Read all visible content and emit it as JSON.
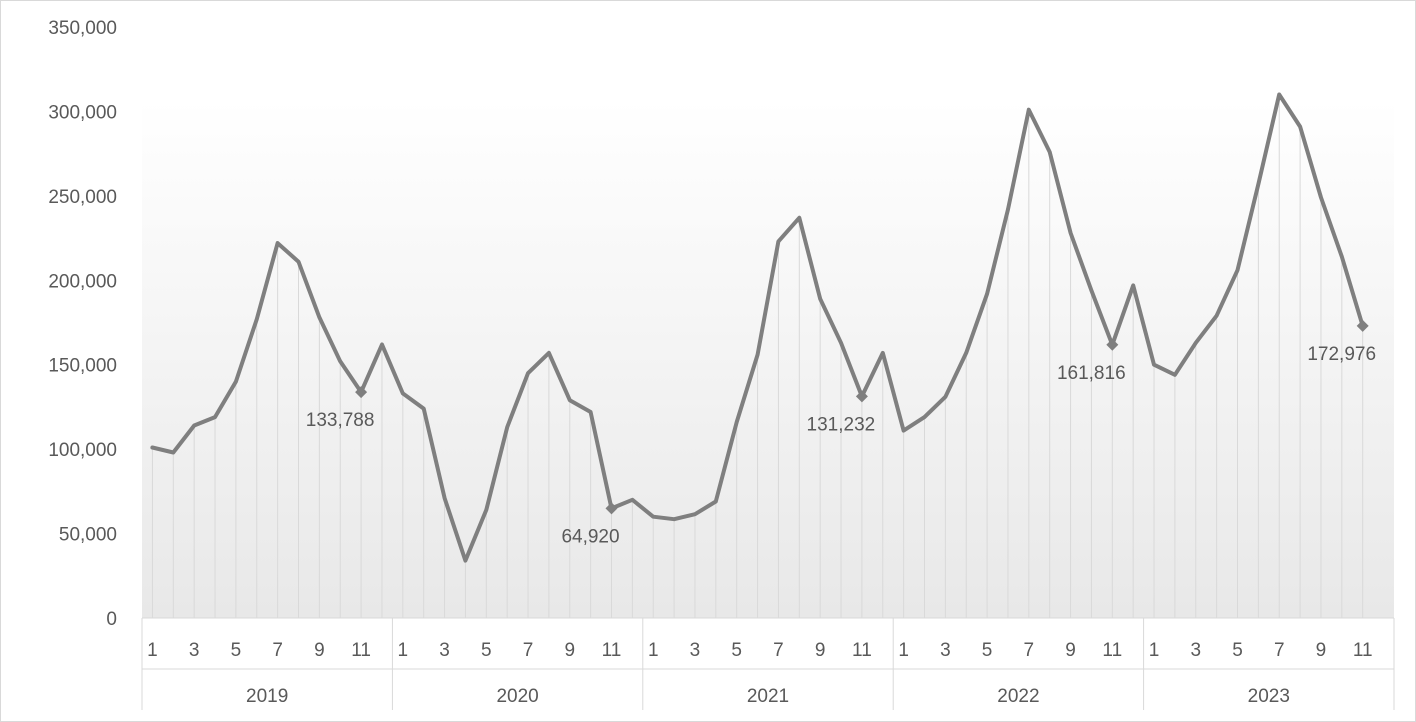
{
  "chart_data": {
    "type": "line",
    "title": "",
    "xlabel": "",
    "ylabel": "",
    "ylim": [
      0,
      350000
    ],
    "yticks": [
      0,
      50000,
      100000,
      150000,
      200000,
      250000,
      300000,
      350000
    ],
    "ytick_labels": [
      "0",
      "50,000",
      "100,000",
      "150,000",
      "200,000",
      "250,000",
      "300,000",
      "350,000"
    ],
    "years": [
      "2019",
      "2020",
      "2021",
      "2022",
      "2023"
    ],
    "month_tick_labels": [
      "1",
      "3",
      "5",
      "7",
      "9",
      "11"
    ],
    "grid": false,
    "drop_lines": true,
    "series": [
      {
        "values": [
          101000,
          98000,
          114000,
          119000,
          140000,
          177000,
          222000,
          211000,
          178000,
          152000,
          133788,
          162000,
          133000,
          124000,
          71000,
          34000,
          64000,
          113000,
          145000,
          157000,
          129000,
          122000,
          64920,
          70000,
          60000,
          58500,
          61500,
          69000,
          116000,
          156000,
          223000,
          237000,
          189000,
          163000,
          131232,
          157000,
          111000,
          119000,
          131000,
          157000,
          192000,
          242000,
          301000,
          276000,
          228000,
          194000,
          161816,
          197000,
          150000,
          144000,
          163000,
          179000,
          206000,
          257000,
          310000,
          291000,
          249000,
          214000,
          172976
        ]
      }
    ],
    "data_labels": [
      {
        "index": 10,
        "text": "133,788"
      },
      {
        "index": 22,
        "text": "64,920"
      },
      {
        "index": 34,
        "text": "131,232"
      },
      {
        "index": 46,
        "text": "161,816"
      },
      {
        "index": 58,
        "text": "172,976"
      }
    ],
    "colors": {
      "line": "#7f7f7f",
      "drop_line": "#d9d9d9",
      "axis": "#d9d9d9",
      "text": "#595959",
      "fill_top": "#ffffff",
      "fill_bottom": "#e8e8e8"
    }
  }
}
